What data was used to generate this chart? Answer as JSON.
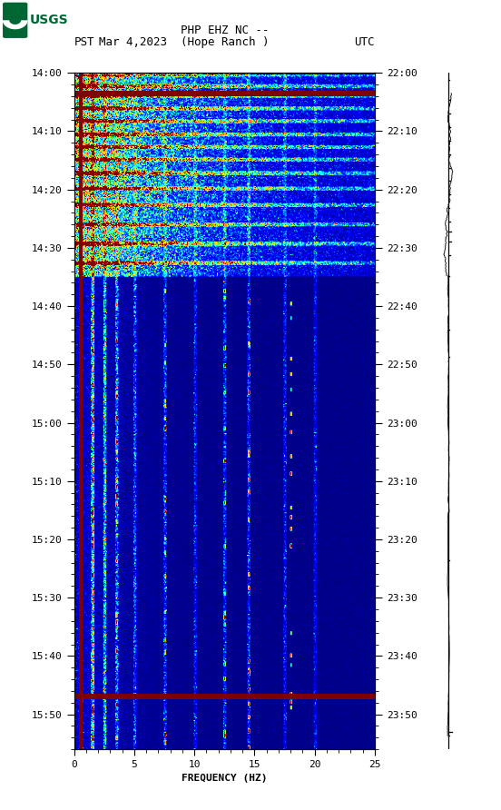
{
  "title_line1": "PHP EHZ NC --",
  "title_line2": "(Hope Ranch )",
  "date_label": "Mar 4,2023",
  "timezone_left": "PST",
  "timezone_right": "UTC",
  "freq_min": 0,
  "freq_max": 25,
  "xlabel": "FREQUENCY (HZ)",
  "pst_ticks": [
    "14:00",
    "14:10",
    "14:20",
    "14:30",
    "14:40",
    "14:50",
    "15:00",
    "15:10",
    "15:20",
    "15:30",
    "15:40",
    "15:50"
  ],
  "utc_ticks": [
    "22:00",
    "22:10",
    "22:20",
    "22:30",
    "22:40",
    "22:50",
    "23:00",
    "23:10",
    "23:20",
    "23:30",
    "23:40",
    "23:50"
  ],
  "xtick_labels": [
    "0",
    "5",
    "10",
    "15",
    "20",
    "25"
  ],
  "xtick_vals": [
    0,
    5,
    10,
    15,
    20,
    25
  ],
  "fig_width": 5.52,
  "fig_height": 8.92,
  "background_color": "#ffffff",
  "usgs_color": "#006633",
  "total_minutes": 116,
  "n_time": 700,
  "n_freq": 500,
  "seismo_tick_times_frac": [
    0.01,
    0.04,
    0.06,
    0.08,
    0.1,
    0.12,
    0.14,
    0.16,
    0.18,
    0.2,
    0.22,
    0.235,
    0.25,
    0.27,
    0.3,
    0.38,
    0.42,
    0.72,
    0.98
  ],
  "seismo_tick_lengths": [
    0.03,
    0.04,
    0.04,
    0.04,
    0.04,
    0.04,
    0.04,
    0.04,
    0.04,
    0.02,
    0.04,
    0.06,
    0.06,
    0.04,
    0.03,
    0.02,
    0.02,
    0.02,
    0.03
  ]
}
